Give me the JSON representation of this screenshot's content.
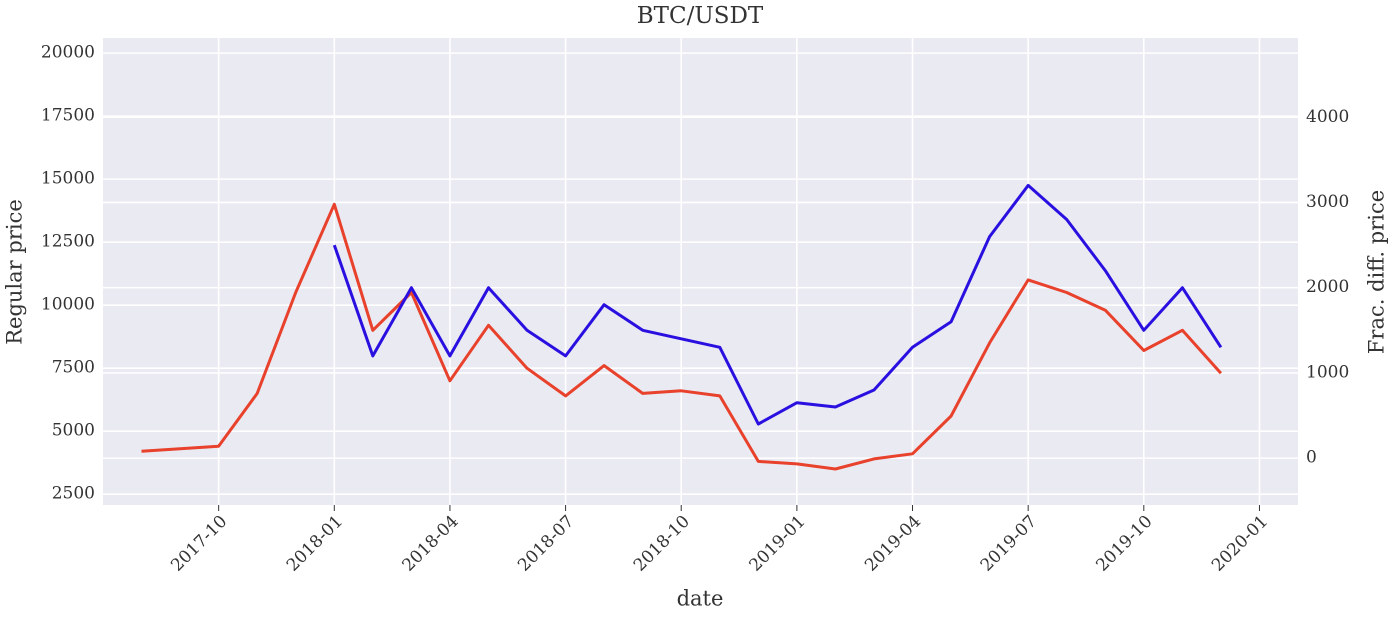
{
  "chart_data": {
    "type": "line",
    "title": "BTC/USDT",
    "x_label": "date",
    "y_label": "Regular price",
    "y2_label": "Frac. diff. price",
    "x": [
      "2017-08",
      "2017-09",
      "2017-10",
      "2017-11",
      "2017-12",
      "2018-01",
      "2018-02",
      "2018-03",
      "2018-04",
      "2018-05",
      "2018-06",
      "2018-07",
      "2018-08",
      "2018-09",
      "2018-10",
      "2018-11",
      "2018-12",
      "2019-01",
      "2019-02",
      "2019-03",
      "2019-04",
      "2019-05",
      "2019-06",
      "2019-07",
      "2019-08",
      "2019-09",
      "2019-10",
      "2019-11",
      "2019-12"
    ],
    "series": [
      {
        "name": "Regular price",
        "color": "#e8412c",
        "axis": "y",
        "values": [
          4200,
          4300,
          4400,
          6500,
          10500,
          14000,
          9000,
          10500,
          7000,
          9200,
          7500,
          6400,
          7600,
          6500,
          6600,
          6400,
          3800,
          3700,
          3500,
          3900,
          4100,
          5600,
          8500,
          11000,
          10500,
          9800,
          8200,
          9000,
          7300
        ]
      },
      {
        "name": "Frac. diff. price",
        "color": "#2a10e0",
        "axis": "y2",
        "values": [
          null,
          null,
          null,
          null,
          null,
          2500,
          1200,
          2000,
          1200,
          2000,
          1500,
          1200,
          1800,
          1500,
          1400,
          1300,
          400,
          650,
          600,
          800,
          1300,
          1600,
          2600,
          3200,
          2800,
          2200,
          1500,
          2000,
          1300
        ]
      }
    ],
    "xlim": [
      "2017-07",
      "2020-02"
    ],
    "xticks": [
      "2017-10",
      "2018-01",
      "2018-04",
      "2018-07",
      "2018-10",
      "2019-01",
      "2019-04",
      "2019-07",
      "2019-10",
      "2020-01"
    ],
    "ylim": [
      2070,
      20600
    ],
    "yticks": [
      2500,
      5000,
      7500,
      10000,
      12500,
      15000,
      17500,
      20000
    ],
    "y2lim": [
      -550,
      4930
    ],
    "y2ticks": [
      0,
      1000,
      2000,
      3000,
      4000
    ],
    "grid": true
  }
}
